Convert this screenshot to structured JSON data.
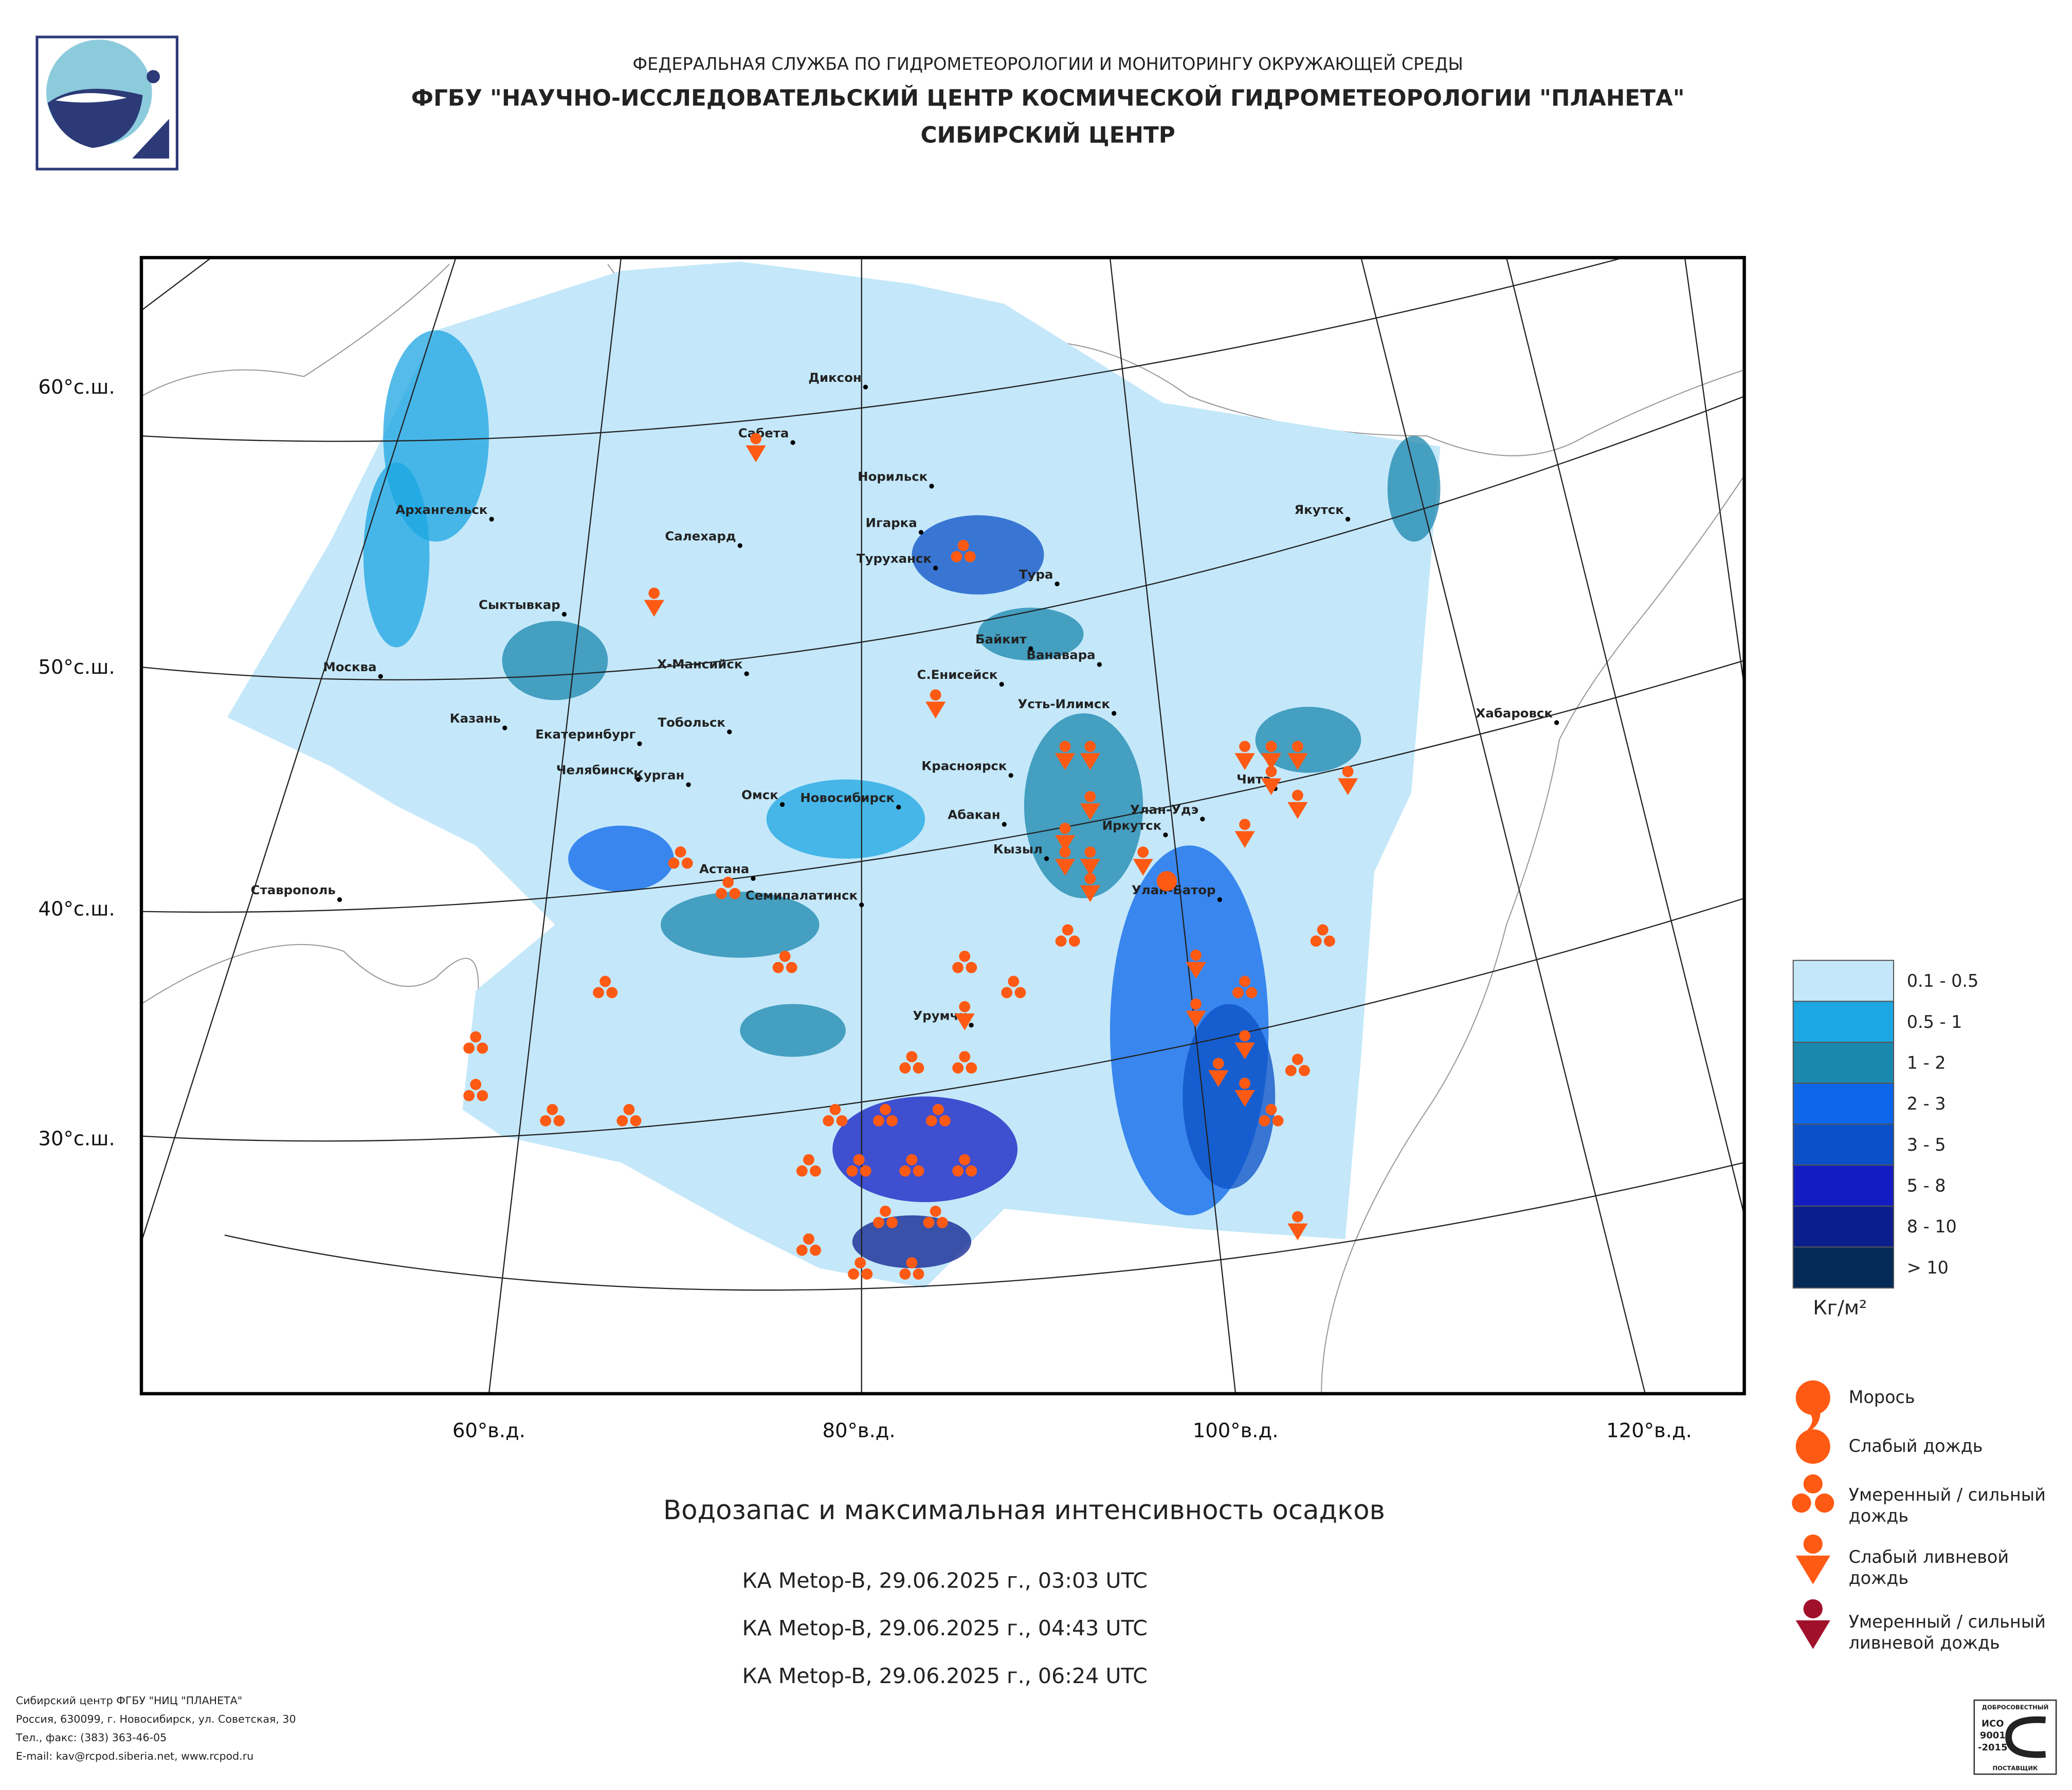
{
  "header": {
    "agency": "ФЕДЕРАЛЬНАЯ СЛУЖБА ПО ГИДРОМЕТЕОРОЛОГИИ И МОНИТОРИНГУ ОКРУЖАЮЩЕЙ СРЕДЫ",
    "institute": "ФГБУ \"НАУЧНО-ИССЛЕДОВАТЕЛЬСКИЙ ЦЕНТР КОСМИЧЕСКОЙ ГИДРОМЕТЕОРОЛОГИИ \"ПЛАНЕТА\"",
    "center": "СИБИРСКИЙ ЦЕНТР"
  },
  "map": {
    "latitude_labels": [
      "60°с.ш.",
      "50°с.ш.",
      "40°с.ш.",
      "30°с.ш."
    ],
    "longitude_labels": [
      "60°в.д.",
      "80°в.д.",
      "100°в.д.",
      "120°в.д."
    ],
    "cities": [
      "Диксон",
      "Сабета",
      "Норильск",
      "Архангельск",
      "Якутск",
      "Игарка",
      "Салехард",
      "Туруханск",
      "Тура",
      "Сыктывкар",
      "Байкит",
      "Ванавара",
      "Москва",
      "Х-Мансийск",
      "С.Енисейск",
      "Усть-Илимск",
      "Хабаровск",
      "Казань",
      "Тобольск",
      "Екатеринбург",
      "Красноярск",
      "Челябинск",
      "Чита",
      "Курган",
      "Омск",
      "Новосибирск",
      "Абакан",
      "Улан-Удэ",
      "Иркутск",
      "Кызыл",
      "Астана",
      "Ставрополь",
      "Семипалатинск",
      "Улан-Батор",
      "Урумчи"
    ]
  },
  "legend": {
    "water_content": [
      {
        "label": "0.1 - 0.5",
        "color": "#c4e8fa"
      },
      {
        "label": "0.5 - 1",
        "color": "#1ca6e2"
      },
      {
        "label": "1 - 2",
        "color": "#1a87ad"
      },
      {
        "label": "2 - 3",
        "color": "#0b66ea"
      },
      {
        "label": "3 - 5",
        "color": "#0b50c6"
      },
      {
        "label": "5 - 8",
        "color": "#121cc2"
      },
      {
        "label": "8 - 10",
        "color": "#0b1f8c"
      },
      {
        "label": "> 10",
        "color": "#062a58"
      }
    ],
    "unit": "Кг/м²",
    "precipitation": [
      {
        "lines": [
          "Морось"
        ]
      },
      {
        "lines": [
          "Слабый дождь"
        ]
      },
      {
        "lines": [
          "Умеренный / сильный",
          "дождь"
        ]
      },
      {
        "lines": [
          "Слабый ливневой",
          "дождь"
        ]
      },
      {
        "lines": [
          "Умеренный / сильный",
          "ливневой дождь"
        ]
      }
    ]
  },
  "title": "Водозапас и максимальная интенсивность осадков",
  "passes": [
    "КА Metop-B, 29.06.2025 г., 03:03 UTC",
    "КА Metop-B, 29.06.2025 г., 04:43 UTC",
    "КА Metop-B, 29.06.2025 г., 06:24 UTC"
  ],
  "footer": [
    "Сибирский центр ФГБУ \"НИЦ \"ПЛАНЕТА\"",
    "Россия, 630099, г. Новосибирск, ул. Советская, 30",
    "Тел., факс: (383) 363-46-05",
    "E-mail: kav@rcpod.siberia.net, www.rcpod.ru"
  ],
  "certificate": [
    "ДОБРОСОВЕСТНЫЙ",
    "ИСО",
    "9001",
    "-2015",
    "ПОСТАВЩИК"
  ]
}
